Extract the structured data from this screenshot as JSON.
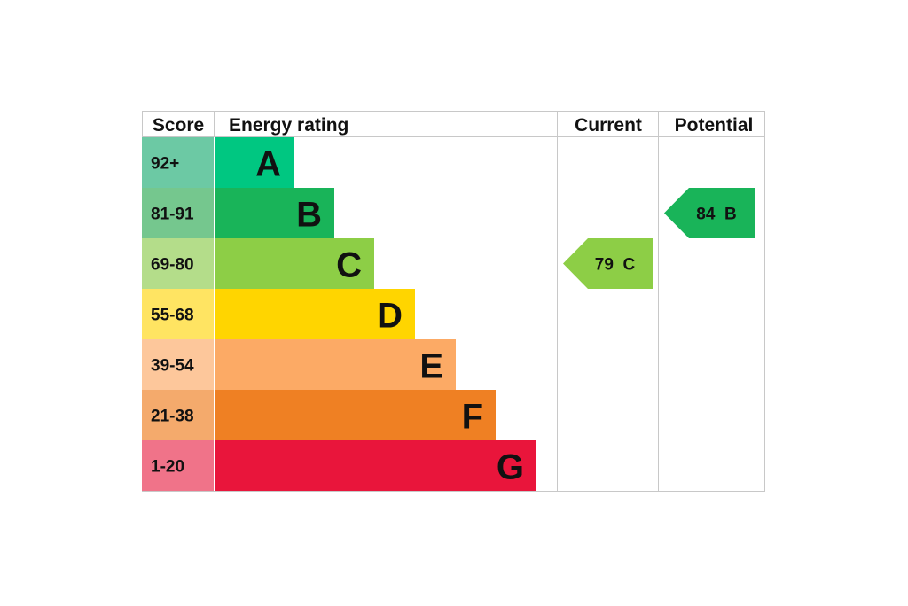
{
  "chart_data": {
    "type": "bar",
    "headers": {
      "score": "Score",
      "rating": "Energy rating",
      "current": "Current",
      "potential": "Potential"
    },
    "bands": [
      {
        "letter": "A",
        "range": "92+",
        "min": 92,
        "color": "#00c781",
        "score_bg": "#6cc9a4"
      },
      {
        "letter": "B",
        "range": "81-91",
        "min": 81,
        "color": "#19b459",
        "score_bg": "#75c78e"
      },
      {
        "letter": "C",
        "range": "69-80",
        "min": 69,
        "color": "#8dce46",
        "score_bg": "#b4dd8a"
      },
      {
        "letter": "D",
        "range": "55-68",
        "min": 55,
        "color": "#ffd500",
        "score_bg": "#ffe462"
      },
      {
        "letter": "E",
        "range": "39-54",
        "min": 39,
        "color": "#fcaa65",
        "score_bg": "#fdc79b"
      },
      {
        "letter": "F",
        "range": "21-38",
        "min": 21,
        "color": "#ef8023",
        "score_bg": "#f4aa6c"
      },
      {
        "letter": "G",
        "range": "1-20",
        "min": 1,
        "color": "#e9153b",
        "score_bg": "#f07389"
      }
    ],
    "current": {
      "score": 79,
      "band": "C",
      "label": "79  C"
    },
    "potential": {
      "score": 84,
      "band": "B",
      "label": "84  B"
    }
  }
}
